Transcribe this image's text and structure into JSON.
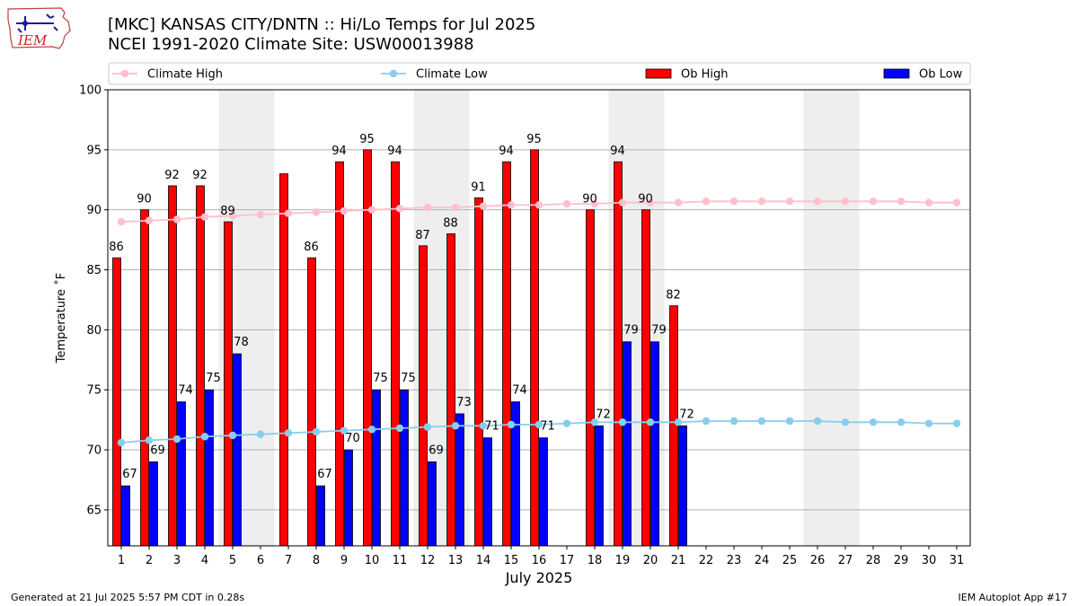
{
  "header": {
    "title_line1": "[MKC] KANSAS CITY/DNTN :: Hi/Lo Temps for Jul 2025",
    "title_line2": "NCEI 1991-2020 Climate Site: USW00013988",
    "logo_text": "IEM"
  },
  "footer": {
    "generated": "Generated at 21 Jul 2025 5:57 PM CDT in 0.28s",
    "app": "IEM Autoplot App #17"
  },
  "colors": {
    "ob_high": "#ff0000",
    "ob_low": "#0000ff",
    "climate_high": "#ffc0cb",
    "climate_low": "#87ceeb",
    "weekend_shade": "#eeeeee",
    "grid": "#b0b0b0"
  },
  "chart_data": {
    "type": "bar",
    "xlabel": "July 2025",
    "ylabel": "Temperature ˚F",
    "ylim": [
      62,
      100
    ],
    "yticks": [
      65,
      70,
      75,
      80,
      85,
      90,
      95,
      100
    ],
    "grid": "horizontal",
    "legend_position": "top",
    "categories": [
      "1",
      "2",
      "3",
      "4",
      "5",
      "6",
      "7",
      "8",
      "9",
      "10",
      "11",
      "12",
      "13",
      "14",
      "15",
      "16",
      "17",
      "18",
      "19",
      "20",
      "21",
      "22",
      "23",
      "24",
      "25",
      "26",
      "27",
      "28",
      "29",
      "30",
      "31"
    ],
    "shaded_days": [
      5,
      6,
      12,
      13,
      19,
      20,
      26,
      27
    ],
    "series": [
      {
        "name": "Climate High",
        "kind": "line",
        "values": [
          89.0,
          89.1,
          89.2,
          89.4,
          89.5,
          89.6,
          89.7,
          89.8,
          89.9,
          90.0,
          90.1,
          90.2,
          90.2,
          90.3,
          90.4,
          90.4,
          90.5,
          90.5,
          90.6,
          90.6,
          90.6,
          90.7,
          90.7,
          90.7,
          90.7,
          90.7,
          90.7,
          90.7,
          90.7,
          90.6,
          90.6
        ]
      },
      {
        "name": "Climate Low",
        "kind": "line",
        "values": [
          70.6,
          70.8,
          70.9,
          71.1,
          71.2,
          71.3,
          71.4,
          71.5,
          71.6,
          71.7,
          71.8,
          71.9,
          72.0,
          72.0,
          72.1,
          72.1,
          72.2,
          72.3,
          72.3,
          72.3,
          72.3,
          72.4,
          72.4,
          72.4,
          72.4,
          72.4,
          72.3,
          72.3,
          72.3,
          72.2,
          72.2
        ]
      },
      {
        "name": "Ob High",
        "kind": "bar",
        "values": [
          86,
          90,
          92,
          92,
          89,
          null,
          93,
          86,
          94,
          95,
          94,
          87,
          88,
          91,
          94,
          95,
          null,
          90,
          94,
          90,
          82,
          null,
          null,
          null,
          null,
          null,
          null,
          null,
          null,
          null,
          null
        ],
        "labels": [
          "86",
          "90",
          "92",
          "92",
          "89",
          "",
          "",
          "86",
          "94",
          "95",
          "94",
          "87",
          "88",
          "91",
          "94",
          "95",
          "",
          "90",
          "94",
          "90",
          "82",
          "",
          "",
          "",
          "",
          "",
          "",
          "",
          "",
          "",
          ""
        ]
      },
      {
        "name": "Ob Low",
        "kind": "bar",
        "values": [
          67,
          69,
          74,
          75,
          78,
          null,
          null,
          67,
          70,
          75,
          75,
          69,
          73,
          71,
          74,
          71,
          null,
          72,
          79,
          79,
          72,
          null,
          null,
          null,
          null,
          null,
          null,
          null,
          null,
          null,
          null
        ],
        "labels": [
          "67",
          "69",
          "74",
          "75",
          "78",
          "",
          "",
          "67",
          "70",
          "75",
          "75",
          "69",
          "73",
          "71",
          "74",
          "71",
          "",
          "72",
          "79",
          "79",
          "72",
          "",
          "",
          "",
          "",
          "",
          "",
          "",
          "",
          "",
          ""
        ]
      }
    ]
  }
}
